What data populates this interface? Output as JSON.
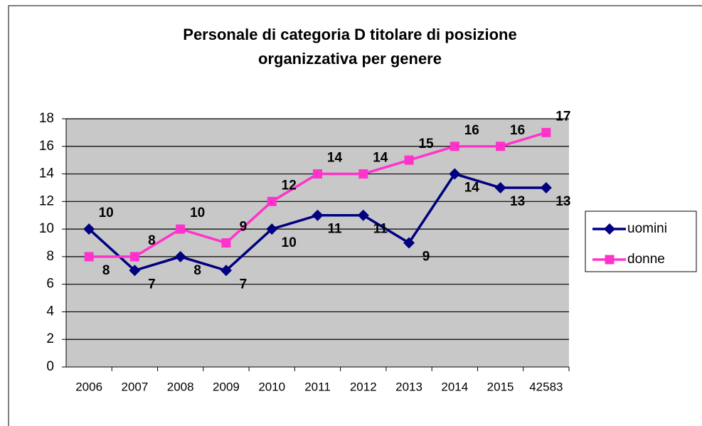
{
  "chart_data": {
    "type": "line",
    "title": [
      "Personale di categoria D titolare di posizione",
      "organizzativa per genere"
    ],
    "categories": [
      "2006",
      "2007",
      "2008",
      "2009",
      "2010",
      "2011",
      "2012",
      "2013",
      "2014",
      "2015",
      "42583"
    ],
    "series": [
      {
        "name": "uomini",
        "color": "#000080",
        "marker": "diamond",
        "values": [
          10,
          7,
          8,
          7,
          10,
          11,
          11,
          9,
          14,
          13,
          13
        ]
      },
      {
        "name": "donne",
        "color": "#ff33cc",
        "marker": "square",
        "values": [
          8,
          8,
          10,
          9,
          12,
          14,
          14,
          15,
          16,
          16,
          17
        ]
      }
    ],
    "ylim": [
      0,
      18
    ],
    "yticks": [
      0,
      2,
      4,
      6,
      8,
      10,
      12,
      14,
      16,
      18
    ],
    "grid": true,
    "legend": "right"
  }
}
